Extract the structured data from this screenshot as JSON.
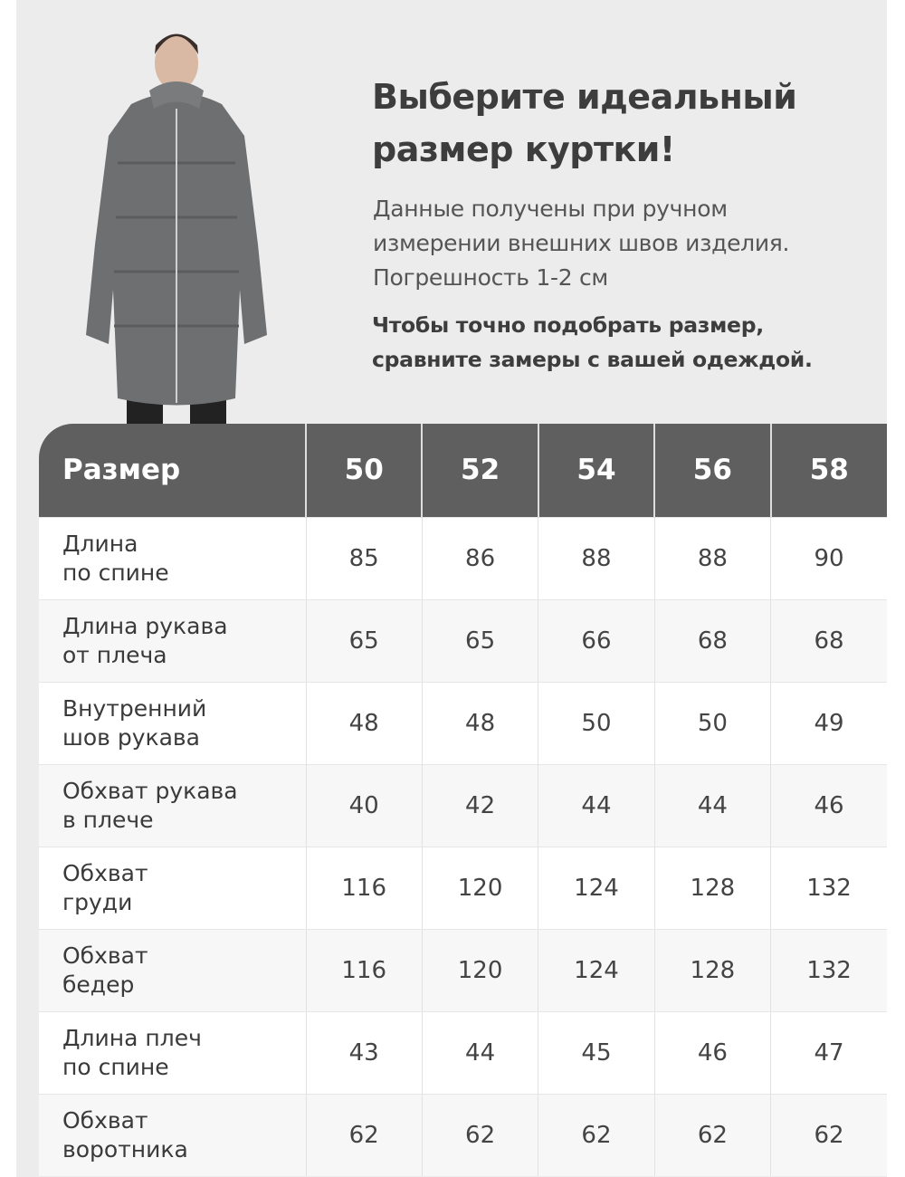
{
  "heading": {
    "title_line1": "Выберите идеальный",
    "title_line2": "размер куртки!",
    "sub_line1": "Данные получены при ручном",
    "sub_line2": "измерении внешних швов изделия.",
    "sub_line3": "Погрешность 1-2 см",
    "note_line1": "Чтобы точно подобрать размер,",
    "note_line2": "сравните замеры с вашей одеждой."
  },
  "table": {
    "header": [
      "Размер",
      "50",
      "52",
      "54",
      "56",
      "58"
    ],
    "rows": [
      {
        "label": "Длина\nпо спине",
        "values": [
          "85",
          "86",
          "88",
          "88",
          "90"
        ]
      },
      {
        "label": "Длина рукава\nот плеча",
        "values": [
          "65",
          "65",
          "66",
          "68",
          "68"
        ]
      },
      {
        "label": "Внутренний\nшов рукава",
        "values": [
          "48",
          "48",
          "50",
          "50",
          "49"
        ]
      },
      {
        "label": "Обхват рукава\nв плече",
        "values": [
          "40",
          "42",
          "44",
          "44",
          "46"
        ]
      },
      {
        "label": "Обхват\nгруди",
        "values": [
          "116",
          "120",
          "124",
          "128",
          "132"
        ]
      },
      {
        "label": "Обхват\nбедер",
        "values": [
          "116",
          "120",
          "124",
          "128",
          "132"
        ]
      },
      {
        "label": "Длина плеч\nпо спине",
        "values": [
          "43",
          "44",
          "45",
          "46",
          "47"
        ]
      },
      {
        "label": "Обхват\nворотника",
        "values": [
          "62",
          "62",
          "62",
          "62",
          "62"
        ]
      }
    ]
  },
  "colors": {
    "header_bg": "#5f5f5f",
    "panel_bg": "#ececec",
    "jacket": "#6e6f71"
  }
}
